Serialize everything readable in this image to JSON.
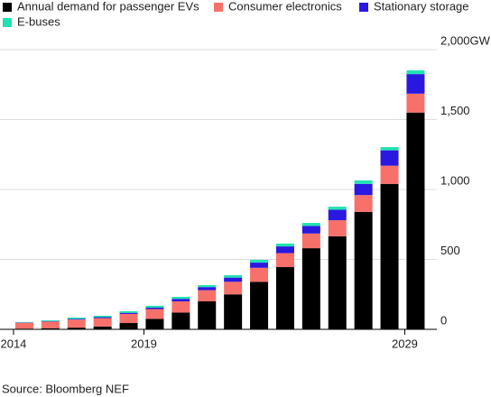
{
  "chart_data": {
    "type": "bar",
    "stacked": true,
    "categories": [
      "2014",
      null,
      null,
      null,
      null,
      "2019",
      null,
      null,
      null,
      null,
      null,
      null,
      null,
      null,
      null,
      "2029"
    ],
    "series": [
      {
        "name": "Annual demand for passenger EVs",
        "color": "#000000",
        "values": [
          5,
          8,
          12,
          20,
          45,
          75,
          120,
          200,
          250,
          340,
          445,
          580,
          665,
          840,
          1040,
          1550
        ]
      },
      {
        "name": "Consumer electronics",
        "color": "#f8706a",
        "values": [
          42,
          48,
          58,
          60,
          65,
          70,
          80,
          80,
          90,
          100,
          100,
          105,
          115,
          120,
          130,
          135
        ]
      },
      {
        "name": "Stationary storage",
        "color": "#2a18e0",
        "values": [
          2,
          3,
          5,
          7,
          8,
          10,
          18,
          22,
          30,
          37,
          48,
          55,
          75,
          80,
          110,
          140
        ]
      },
      {
        "name": "E-buses",
        "color": "#20e3b2",
        "values": [
          3,
          6,
          9,
          10,
          11,
          13,
          14,
          14,
          17,
          20,
          20,
          21,
          22,
          25,
          23,
          27
        ]
      }
    ],
    "ylim": [
      0,
      2000
    ],
    "yticks": [
      0,
      500,
      {
        "value": 1000,
        "label": "1,000"
      },
      {
        "value": 1500,
        "label": "1,500"
      },
      {
        "value": 2000,
        "label": "2,000GW"
      }
    ],
    "grid": true,
    "source": "Source: Bloomberg NEF"
  }
}
